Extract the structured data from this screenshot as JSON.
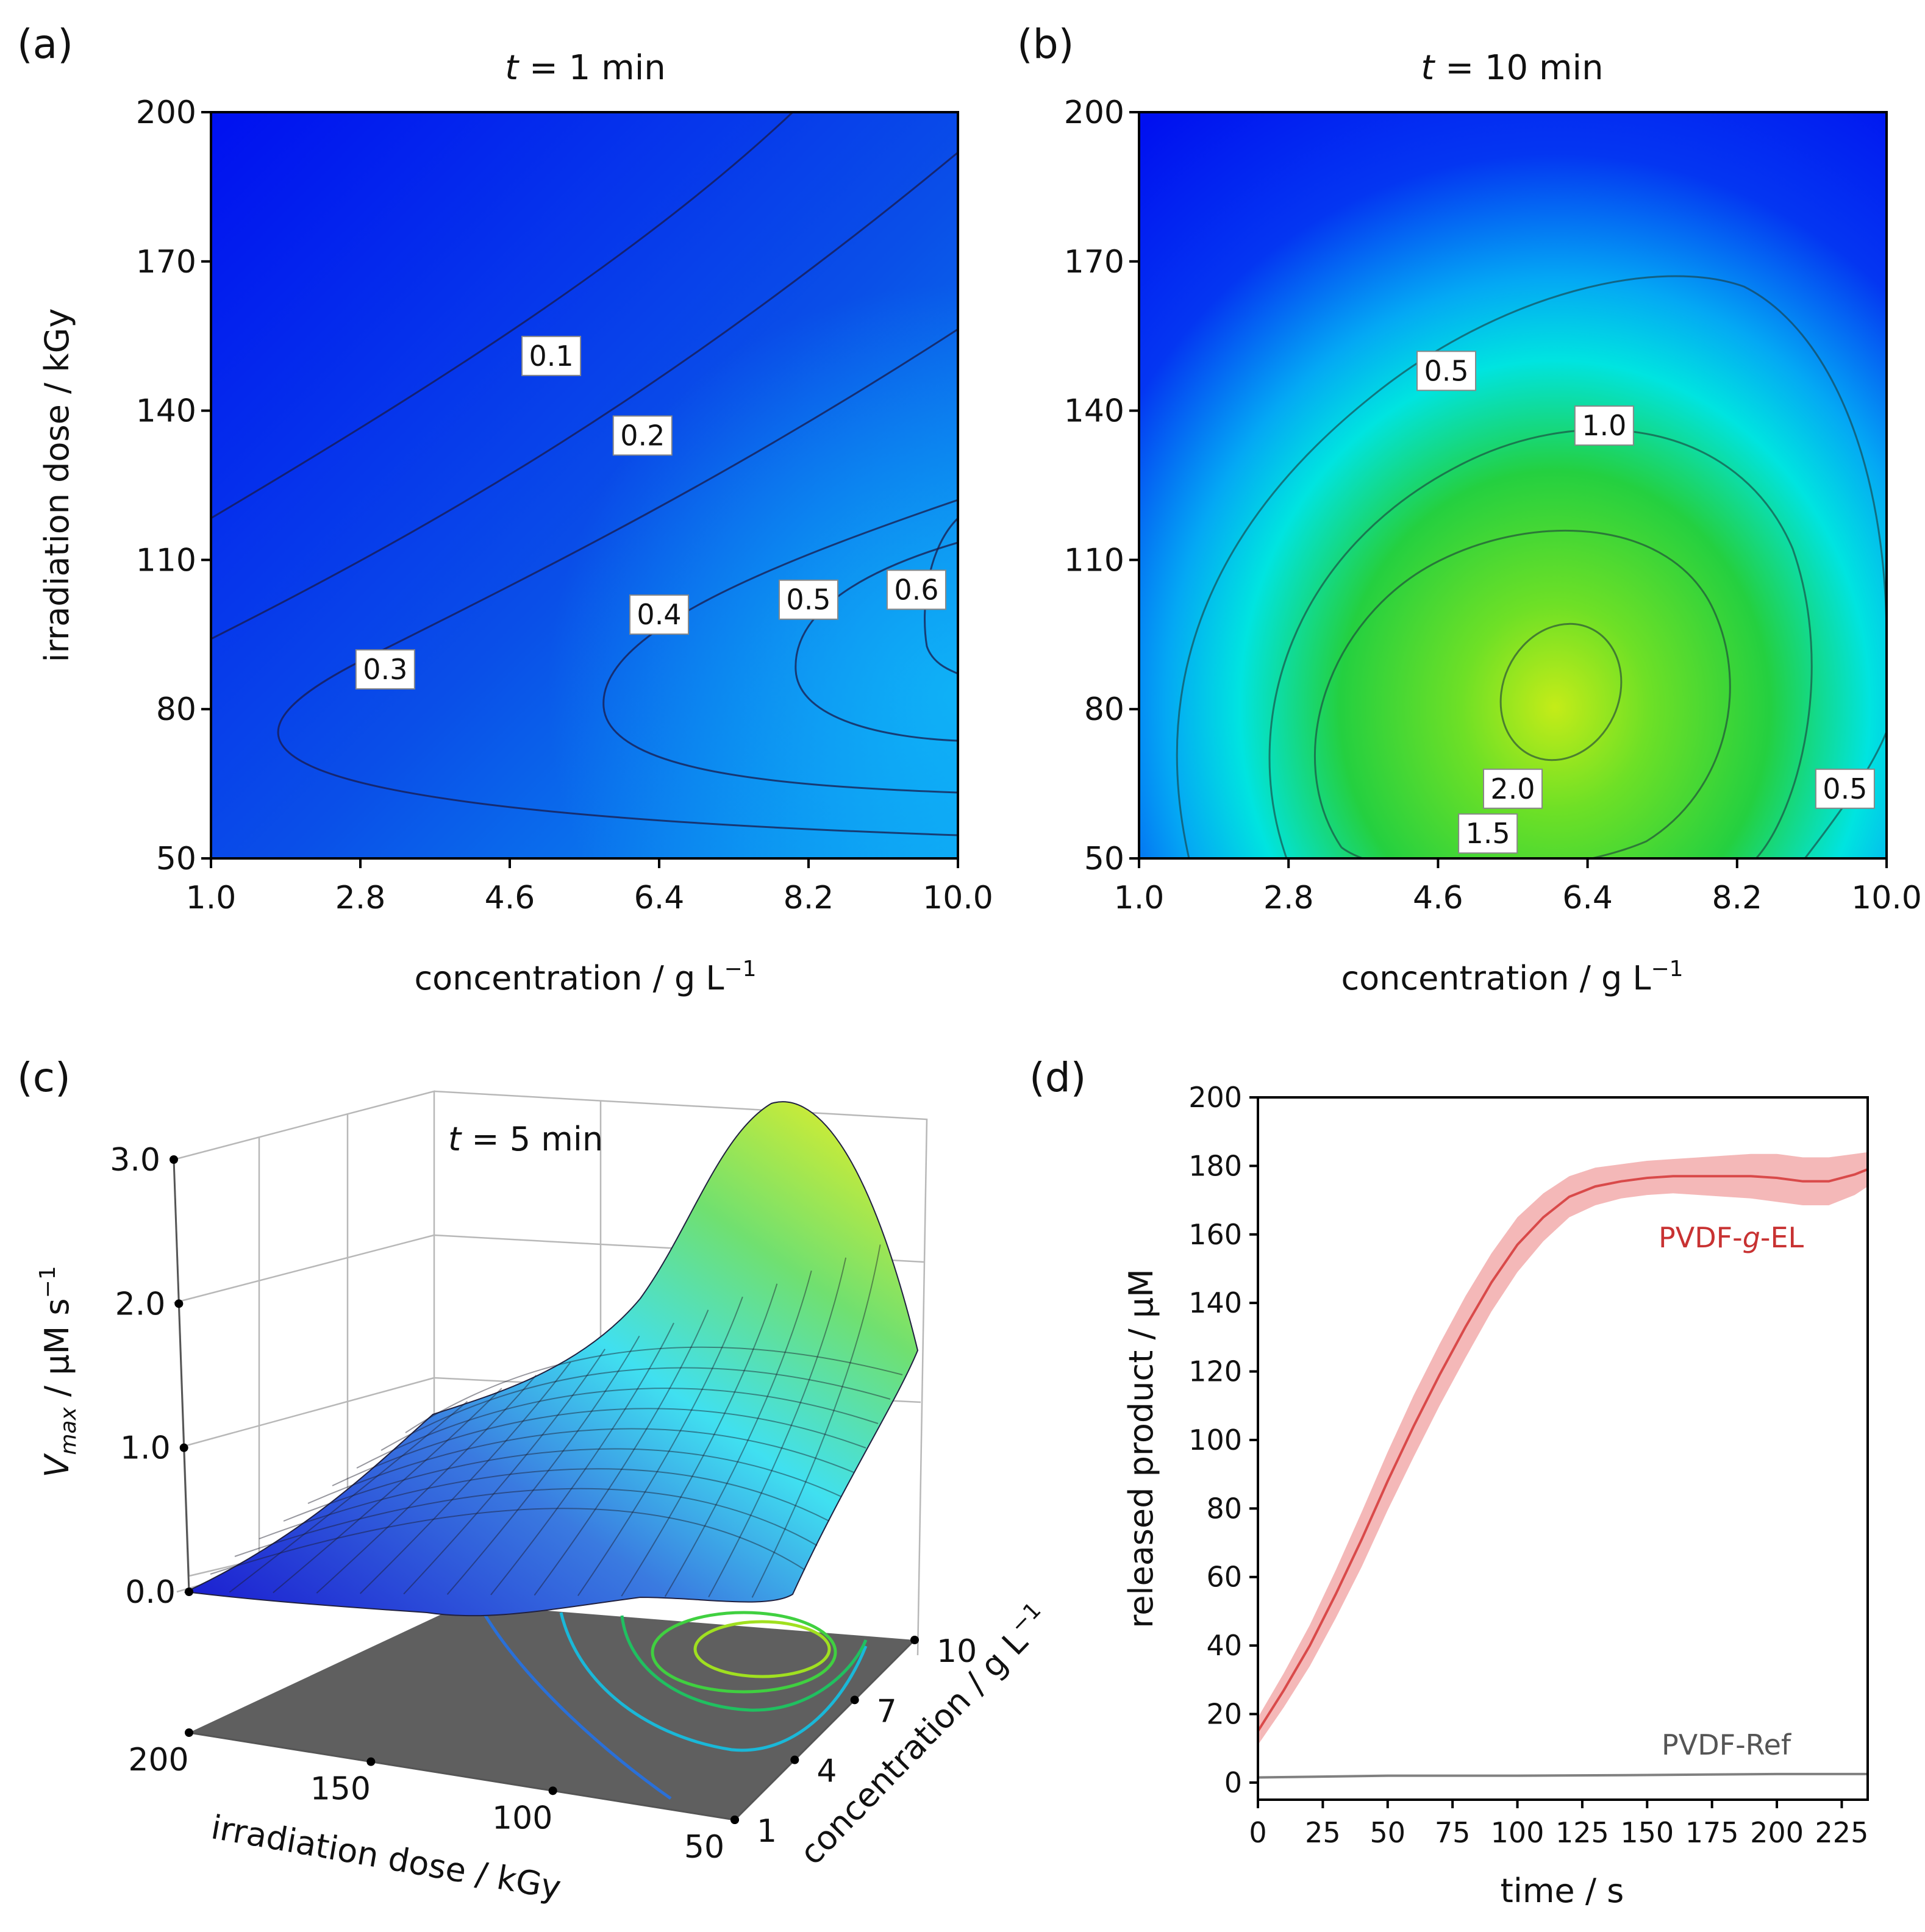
{
  "chart_data": [
    {
      "panel": "(a)",
      "type": "heatmap",
      "title_var": "t",
      "title_rest": " = 1 min",
      "xlabel": "concentration / g L",
      "xlabel_sup": "−1",
      "ylabel": "irradiation dose / kGy",
      "xlim": [
        1.0,
        10.0
      ],
      "ylim": [
        50,
        200
      ],
      "xticks": [
        "1.0",
        "2.8",
        "4.6",
        "6.4",
        "8.2",
        "10.0"
      ],
      "yticks": [
        "50",
        "80",
        "110",
        "140",
        "170",
        "200"
      ],
      "colormap": [
        "#0010f0",
        "#0a58ea",
        "#0b96f0"
      ],
      "contour_labels": [
        {
          "text": "0.1",
          "x": 5.1,
          "y": 151
        },
        {
          "text": "0.2",
          "x": 6.2,
          "y": 135
        },
        {
          "text": "0.3",
          "x": 3.1,
          "y": 88
        },
        {
          "text": "0.4",
          "x": 6.4,
          "y": 99
        },
        {
          "text": "0.5",
          "x": 8.2,
          "y": 102
        },
        {
          "text": "0.6",
          "x": 9.5,
          "y": 104
        }
      ]
    },
    {
      "panel": "(b)",
      "type": "heatmap",
      "title_var": "t",
      "title_rest": " = 10 min",
      "xlabel": "concentration / g L",
      "xlabel_sup": "−1",
      "xlim": [
        1.0,
        10.0
      ],
      "ylim": [
        50,
        200
      ],
      "xticks": [
        "1.0",
        "2.8",
        "4.6",
        "6.4",
        "8.2",
        "10.0"
      ],
      "yticks": [
        "50",
        "80",
        "110",
        "140",
        "170",
        "200"
      ],
      "peak": {
        "x": 6.0,
        "y": 83,
        "value": 2.2
      },
      "colormap": [
        "#0010f0",
        "#00e8f0",
        "#30d22a",
        "#b8ea1a"
      ],
      "contour_labels": [
        {
          "text": "0.5",
          "x": 4.7,
          "y": 148
        },
        {
          "text": "1.0",
          "x": 6.6,
          "y": 137
        },
        {
          "text": "2.0",
          "x": 5.5,
          "y": 64
        },
        {
          "text": "1.5",
          "x": 5.2,
          "y": 55
        },
        {
          "text": "0.5",
          "x": 9.5,
          "y": 64
        }
      ]
    },
    {
      "panel": "(c)",
      "type": "surface",
      "annotation_var": "t",
      "annotation_rest": " = 5 min",
      "zlabel": "V",
      "zlabel_sub": "max",
      "zlabel_rest": "  / μM s",
      "zlabel_sup": "−1",
      "xlabel": "irradiation dose / kGy",
      "ylabel": "concentration / g L",
      "ylabel_sup": "−1",
      "zticks": [
        "0.0",
        "1.0",
        "2.0",
        "3.0"
      ],
      "xticks": [
        "200",
        "150",
        "100",
        "50"
      ],
      "yticks": [
        "1",
        "4",
        "7",
        "10"
      ],
      "zlim": [
        0,
        3.0
      ],
      "peak_value": 2.6,
      "colormap": [
        "#2030d0",
        "#40e0f0",
        "#80e060",
        "#f0f000"
      ]
    },
    {
      "panel": "(d)",
      "type": "line",
      "xlabel": "time / s",
      "ylabel": "released product / μM",
      "xlim": [
        0,
        235
      ],
      "ylim": [
        -5,
        200
      ],
      "xticks": [
        0,
        25,
        50,
        75,
        100,
        125,
        150,
        175,
        200,
        225
      ],
      "yticks": [
        0,
        20,
        40,
        60,
        80,
        100,
        120,
        140,
        160,
        180,
        200
      ],
      "series": [
        {
          "name_pre": "PVDF-",
          "name_italic": "g",
          "name_post": "-EL",
          "color": "#d94a4a",
          "band_color": "#f4b8b8",
          "x": [
            0,
            10,
            20,
            30,
            40,
            50,
            60,
            70,
            80,
            90,
            100,
            110,
            120,
            130,
            140,
            150,
            160,
            170,
            180,
            190,
            200,
            210,
            220,
            230,
            235
          ],
          "y": [
            15,
            27,
            40,
            55,
            71,
            88,
            104,
            119,
            133,
            146,
            157,
            165,
            171,
            174,
            175.5,
            176.5,
            177,
            177,
            177,
            177,
            176.5,
            175.5,
            175.5,
            177.5,
            179
          ],
          "band": [
            4,
            5,
            6,
            7,
            8,
            8.5,
            9,
            9,
            9,
            8.5,
            8,
            7,
            6,
            5.5,
            5,
            5,
            5,
            5.5,
            6,
            6.5,
            7,
            7,
            7,
            6,
            5
          ]
        },
        {
          "name": "PVDF-Ref",
          "color": "#808080",
          "x": [
            0,
            50,
            100,
            150,
            200,
            235
          ],
          "y": [
            1.5,
            2,
            2,
            2.2,
            2.5,
            2.5
          ]
        }
      ]
    }
  ]
}
